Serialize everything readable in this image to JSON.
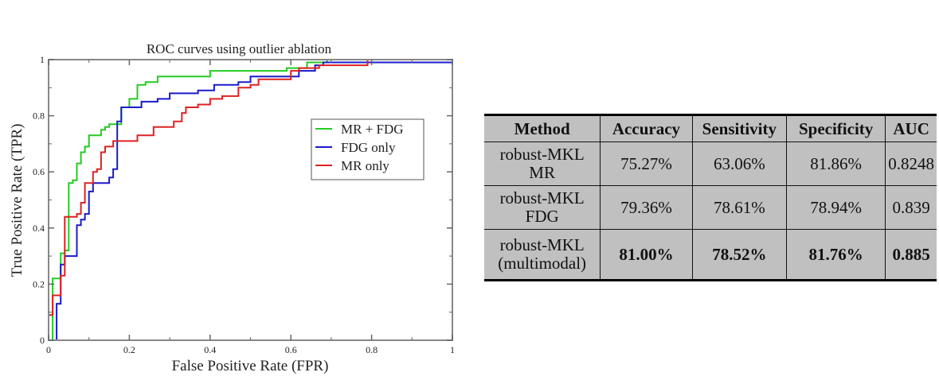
{
  "chart_data": {
    "type": "line",
    "title": "ROC curves using outlier ablation",
    "xlabel": "False Positive Rate (FPR)",
    "ylabel": "True Positive Rate (TPR)",
    "xlim": [
      0,
      1
    ],
    "ylim": [
      0,
      1
    ],
    "xticks": [
      "0",
      "0.2",
      "0.4",
      "0.6",
      "0.8",
      "1"
    ],
    "yticks": [
      "0",
      "0.2",
      "0.4",
      "0.6",
      "0.8",
      "1"
    ],
    "grid": false,
    "legend_position": "center-right",
    "series": [
      {
        "name": "MR + FDG",
        "color": "#22cc22",
        "points": [
          [
            0,
            0
          ],
          [
            0.01,
            0
          ],
          [
            0.01,
            0.22
          ],
          [
            0.03,
            0.22
          ],
          [
            0.03,
            0.31
          ],
          [
            0.04,
            0.31
          ],
          [
            0.04,
            0.32
          ],
          [
            0.05,
            0.32
          ],
          [
            0.05,
            0.56
          ],
          [
            0.06,
            0.56
          ],
          [
            0.06,
            0.57
          ],
          [
            0.07,
            0.57
          ],
          [
            0.07,
            0.63
          ],
          [
            0.08,
            0.63
          ],
          [
            0.08,
            0.67
          ],
          [
            0.09,
            0.67
          ],
          [
            0.09,
            0.69
          ],
          [
            0.1,
            0.69
          ],
          [
            0.1,
            0.73
          ],
          [
            0.13,
            0.73
          ],
          [
            0.13,
            0.75
          ],
          [
            0.14,
            0.75
          ],
          [
            0.14,
            0.76
          ],
          [
            0.15,
            0.76
          ],
          [
            0.15,
            0.77
          ],
          [
            0.18,
            0.77
          ],
          [
            0.18,
            0.83
          ],
          [
            0.2,
            0.83
          ],
          [
            0.2,
            0.86
          ],
          [
            0.22,
            0.86
          ],
          [
            0.22,
            0.91
          ],
          [
            0.24,
            0.91
          ],
          [
            0.24,
            0.92
          ],
          [
            0.27,
            0.92
          ],
          [
            0.27,
            0.94
          ],
          [
            0.4,
            0.94
          ],
          [
            0.4,
            0.96
          ],
          [
            0.59,
            0.96
          ],
          [
            0.59,
            0.97
          ],
          [
            0.64,
            0.97
          ],
          [
            0.64,
            0.99
          ],
          [
            0.69,
            0.99
          ],
          [
            0.69,
            1.0
          ],
          [
            1,
            1
          ]
        ]
      },
      {
        "name": "FDG only",
        "color": "#1a1acc",
        "points": [
          [
            0,
            0
          ],
          [
            0.02,
            0
          ],
          [
            0.02,
            0.13
          ],
          [
            0.03,
            0.13
          ],
          [
            0.03,
            0.27
          ],
          [
            0.04,
            0.27
          ],
          [
            0.04,
            0.3
          ],
          [
            0.07,
            0.3
          ],
          [
            0.07,
            0.41
          ],
          [
            0.08,
            0.41
          ],
          [
            0.08,
            0.43
          ],
          [
            0.09,
            0.43
          ],
          [
            0.09,
            0.45
          ],
          [
            0.1,
            0.45
          ],
          [
            0.1,
            0.53
          ],
          [
            0.11,
            0.53
          ],
          [
            0.11,
            0.56
          ],
          [
            0.15,
            0.56
          ],
          [
            0.15,
            0.58
          ],
          [
            0.16,
            0.58
          ],
          [
            0.16,
            0.61
          ],
          [
            0.17,
            0.61
          ],
          [
            0.17,
            0.78
          ],
          [
            0.18,
            0.78
          ],
          [
            0.18,
            0.83
          ],
          [
            0.23,
            0.83
          ],
          [
            0.23,
            0.85
          ],
          [
            0.27,
            0.85
          ],
          [
            0.27,
            0.86
          ],
          [
            0.3,
            0.86
          ],
          [
            0.3,
            0.88
          ],
          [
            0.37,
            0.88
          ],
          [
            0.37,
            0.89
          ],
          [
            0.41,
            0.89
          ],
          [
            0.41,
            0.91
          ],
          [
            0.47,
            0.91
          ],
          [
            0.47,
            0.92
          ],
          [
            0.5,
            0.92
          ],
          [
            0.5,
            0.94
          ],
          [
            0.62,
            0.94
          ],
          [
            0.62,
            0.96
          ],
          [
            0.66,
            0.96
          ],
          [
            0.66,
            0.98
          ],
          [
            0.68,
            0.98
          ],
          [
            0.68,
            0.99
          ],
          [
            1,
            0.99
          ]
        ]
      },
      {
        "name": "MR only",
        "color": "#dd2222",
        "points": [
          [
            0,
            0
          ],
          [
            0,
            0.09
          ],
          [
            0.01,
            0.09
          ],
          [
            0.01,
            0.16
          ],
          [
            0.03,
            0.16
          ],
          [
            0.03,
            0.23
          ],
          [
            0.04,
            0.23
          ],
          [
            0.04,
            0.44
          ],
          [
            0.07,
            0.44
          ],
          [
            0.07,
            0.45
          ],
          [
            0.08,
            0.45
          ],
          [
            0.08,
            0.49
          ],
          [
            0.09,
            0.49
          ],
          [
            0.09,
            0.56
          ],
          [
            0.11,
            0.56
          ],
          [
            0.11,
            0.6
          ],
          [
            0.12,
            0.6
          ],
          [
            0.12,
            0.61
          ],
          [
            0.13,
            0.61
          ],
          [
            0.13,
            0.67
          ],
          [
            0.14,
            0.67
          ],
          [
            0.14,
            0.69
          ],
          [
            0.16,
            0.69
          ],
          [
            0.16,
            0.71
          ],
          [
            0.22,
            0.71
          ],
          [
            0.22,
            0.73
          ],
          [
            0.26,
            0.73
          ],
          [
            0.26,
            0.76
          ],
          [
            0.31,
            0.76
          ],
          [
            0.31,
            0.78
          ],
          [
            0.33,
            0.78
          ],
          [
            0.33,
            0.81
          ],
          [
            0.34,
            0.81
          ],
          [
            0.34,
            0.83
          ],
          [
            0.37,
            0.83
          ],
          [
            0.37,
            0.84
          ],
          [
            0.4,
            0.84
          ],
          [
            0.4,
            0.86
          ],
          [
            0.43,
            0.86
          ],
          [
            0.43,
            0.87
          ],
          [
            0.47,
            0.87
          ],
          [
            0.47,
            0.9
          ],
          [
            0.5,
            0.9
          ],
          [
            0.5,
            0.91
          ],
          [
            0.52,
            0.91
          ],
          [
            0.52,
            0.93
          ],
          [
            0.6,
            0.93
          ],
          [
            0.6,
            0.96
          ],
          [
            0.62,
            0.96
          ],
          [
            0.62,
            0.97
          ],
          [
            0.67,
            0.97
          ],
          [
            0.67,
            0.98
          ],
          [
            0.79,
            0.98
          ],
          [
            0.79,
            1.0
          ],
          [
            1,
            1
          ]
        ]
      }
    ]
  },
  "table": {
    "headers": [
      "Method",
      "Accuracy",
      "Sensitivity",
      "Specificity",
      "AUC"
    ],
    "rows": [
      {
        "method_line1": "robust-MKL",
        "method_line2": "MR",
        "accuracy": "75.27%",
        "sensitivity": "63.06%",
        "specificity": "81.86%",
        "auc": "0.8248"
      },
      {
        "method_line1": "robust-MKL",
        "method_line2": "FDG",
        "accuracy": "79.36%",
        "sensitivity": "78.61%",
        "specificity": "78.94%",
        "auc": "0.839"
      },
      {
        "method_line1": "robust-MKL",
        "method_line2": "(multimodal)",
        "accuracy": "81.00%",
        "sensitivity": "78.52%",
        "specificity": "81.76%",
        "auc": "0.885"
      }
    ]
  }
}
